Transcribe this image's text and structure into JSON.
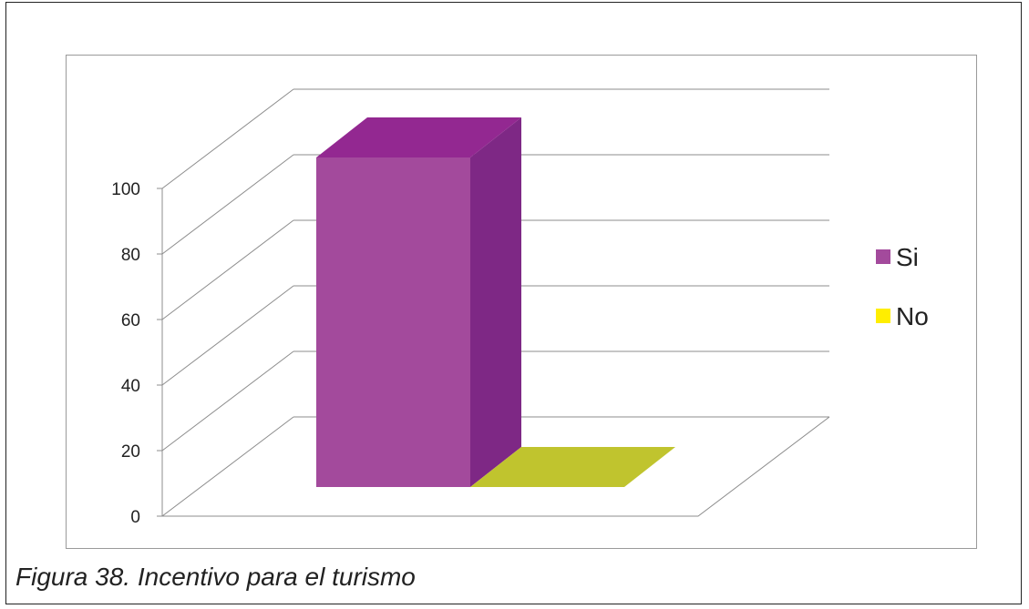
{
  "caption": "Figura 38. Incentivo para el turismo",
  "chart_data": {
    "type": "bar",
    "style": "3d-column",
    "categories": [
      "Si",
      "No"
    ],
    "values": [
      100,
      0
    ],
    "ylim": [
      0,
      100
    ],
    "yticks": [
      "0",
      "20",
      "40",
      "60",
      "80",
      "100"
    ],
    "grid": true,
    "legend_position": "right",
    "title": "",
    "xlabel": "",
    "ylabel": "",
    "legend": [
      {
        "label": "Si",
        "color": "#a34a9c"
      },
      {
        "label": "No",
        "color": "#ffee00"
      }
    ],
    "colors": {
      "si_front": "#a34a9c",
      "si_top": "#932891",
      "si_side": "#7e2885",
      "no_top": "#c0c42e"
    }
  }
}
